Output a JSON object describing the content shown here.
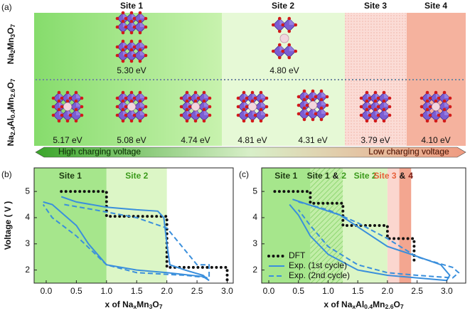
{
  "panel_a": {
    "label": "(a)",
    "sites": [
      {
        "name": "Site 1",
        "color": "#1e5a12"
      },
      {
        "name": "Site 2",
        "color": "#3a9a1a"
      },
      {
        "name": "Site 3",
        "color": "#e8603a"
      },
      {
        "name": "Site 4",
        "color": "#7a1a12"
      }
    ],
    "rows": [
      [
        "Na",
        "2",
        "Mn",
        "3",
        "O",
        "7"
      ],
      [
        "Na",
        "2.4",
        "Al",
        "0.4",
        "Mn",
        "2.6",
        "O",
        "7"
      ]
    ],
    "energies": [
      [
        "5.30 eV",
        "4.80 eV"
      ],
      [
        "5.17 eV",
        "5.08 eV",
        "4.74 eV",
        "4.81 eV",
        "4.31 eV",
        "3.79 eV",
        "4.10 eV"
      ]
    ],
    "arrow": [
      "High charging voltage",
      "Low charging voltage"
    ]
  },
  "chart_data": [
    {
      "type": "line",
      "panel_label": "(b)",
      "ylabel": "Voltage ( V )",
      "xlabel": [
        "x of Na",
        "x",
        "Mn",
        "3",
        "O",
        "7"
      ],
      "xlim": [
        -0.2,
        3.1
      ],
      "ylim": [
        1.5,
        5.9
      ],
      "xticks": [
        {
          "value": 0,
          "label": "0.0"
        },
        {
          "value": 0.5,
          "label": "0.5"
        },
        {
          "value": 1,
          "label": "1.0"
        },
        {
          "value": 1.5,
          "label": "1.5"
        },
        {
          "value": 2,
          "label": "2.0"
        },
        {
          "value": 2.5,
          "label": "2.5"
        },
        {
          "value": 3,
          "label": "3.0"
        }
      ],
      "yticks": [
        2,
        3,
        4,
        5
      ],
      "regions": [
        {
          "range": [
            -0.2,
            1.0
          ],
          "color": "#a6e68c",
          "label": [
            {
              "text": "Site 1",
              "color": "#1e3a12"
            }
          ]
        },
        {
          "range": [
            1.0,
            2.0
          ],
          "color": "#dcf6c6",
          "label": [
            {
              "text": "Site 2",
              "color": "#3a9a1a"
            }
          ]
        }
      ],
      "series": [
        {
          "style": "dotted",
          "color": "#111111",
          "x": [
            0.25,
            1.0,
            1.0,
            2.0,
            2.0,
            3.0,
            3.0
          ],
          "values": [
            5.0,
            5.0,
            4.05,
            4.05,
            2.1,
            2.1,
            1.6
          ]
        },
        {
          "style": "solid",
          "color": "#3a8fdc",
          "x": [
            0.25,
            0.5,
            1.0,
            1.5,
            1.85,
            1.95,
            2.0,
            2.05,
            2.3,
            2.6,
            2.7,
            2.6,
            2.0,
            1.5,
            1.0,
            0.7,
            0.5,
            0.3,
            0.1,
            -0.05
          ],
          "values": [
            4.8,
            4.6,
            4.4,
            4.3,
            4.25,
            4.0,
            3.0,
            2.2,
            2.0,
            1.8,
            1.6,
            1.75,
            1.9,
            2.0,
            2.2,
            3.0,
            3.7,
            4.1,
            4.5,
            4.6
          ]
        },
        {
          "style": "dashed",
          "color": "#3a8fdc",
          "x": [
            0.3,
            0.8,
            1.5,
            2.0,
            2.5,
            2.7,
            2.7,
            2.3,
            1.5,
            1.0,
            0.5,
            0.1,
            -0.05
          ],
          "values": [
            4.5,
            4.3,
            4.0,
            3.6,
            2.2,
            2.2,
            1.7,
            1.8,
            1.9,
            2.2,
            3.3,
            4.0,
            4.5
          ]
        }
      ]
    },
    {
      "type": "line",
      "panel_label": "(c)",
      "xlabel": [
        "x of Na",
        "x",
        "Al",
        "0.4",
        "Mn",
        "2.6",
        "O",
        "7"
      ],
      "xlim": [
        -0.12,
        3.32
      ],
      "ylim": [
        1.5,
        5.9
      ],
      "xticks": [
        {
          "value": 0,
          "label": "0.0"
        },
        {
          "value": 0.5,
          "label": "0.5"
        },
        {
          "value": 1,
          "label": "1.0"
        },
        {
          "value": 1.5,
          "label": "1.5"
        },
        {
          "value": 2,
          "label": "2.0"
        },
        {
          "value": 2.5,
          "label": "2.5"
        },
        {
          "value": 3,
          "label": "3.0"
        }
      ],
      "yticks": [
        2,
        3,
        4,
        5
      ],
      "regions": [
        {
          "range": [
            -0.12,
            0.7
          ],
          "color": "#a6e68c",
          "label": [
            {
              "text": "Site 1",
              "color": "#1e3a12"
            }
          ]
        },
        {
          "range": [
            0.7,
            1.25
          ],
          "color": "#c2eea8",
          "hatch": true,
          "label": [
            {
              "text": "Site 1",
              "color": "#1e3a12"
            },
            {
              "text": "&",
              "color": "#111111"
            },
            {
              "text": "2",
              "color": "#3a9a1a"
            }
          ]
        },
        {
          "range": [
            1.25,
            2.0
          ],
          "color": "#dcf6c6",
          "label": [
            {
              "text": "Site 2",
              "color": "#3a9a1a"
            }
          ]
        },
        {
          "range": [
            2.0,
            2.2
          ],
          "color": "#fbd6cf",
          "label": [
            {
              "text": "Site 3",
              "color": "#e8603a"
            },
            {
              "text": "&",
              "color": "#111111"
            },
            {
              "text": "4",
              "color": "#7a1a12"
            }
          ]
        },
        {
          "range": [
            2.2,
            2.4
          ],
          "color": "#f3a690"
        }
      ],
      "legend": "lower left",
      "series": [
        {
          "name": "DFT",
          "style": "dotted",
          "color": "#111111",
          "x": [
            0.1,
            0.7,
            0.7,
            1.25,
            1.25,
            2.0,
            2.0,
            2.45,
            2.45
          ],
          "values": [
            5.0,
            5.0,
            4.55,
            4.55,
            3.7,
            3.7,
            3.2,
            3.2,
            2.3
          ]
        },
        {
          "name": "Exp. (1st cycle)",
          "style": "solid",
          "color": "#3a8fdc",
          "x": [
            0.4,
            0.8,
            1.2,
            1.6,
            2.0,
            2.4,
            2.9,
            3.05,
            3.0,
            2.5,
            2.0,
            1.5,
            1.0,
            0.7,
            0.5,
            0.35
          ],
          "values": [
            4.7,
            4.4,
            4.1,
            3.5,
            2.9,
            2.6,
            2.2,
            1.8,
            1.6,
            1.7,
            1.8,
            2.0,
            2.6,
            3.3,
            4.1,
            4.5
          ]
        },
        {
          "name": "Exp. (2nd cycle)",
          "style": "dashed",
          "color": "#3a8fdc",
          "x": [
            0.5,
            1.0,
            1.5,
            2.0,
            2.5,
            3.1,
            3.2,
            3.1,
            2.5,
            2.0,
            1.5,
            1.0,
            0.7,
            0.5
          ],
          "values": [
            4.6,
            4.3,
            3.8,
            3.2,
            2.5,
            2.1,
            1.9,
            1.7,
            1.8,
            1.9,
            2.2,
            2.9,
            3.7,
            4.3
          ]
        }
      ]
    }
  ]
}
